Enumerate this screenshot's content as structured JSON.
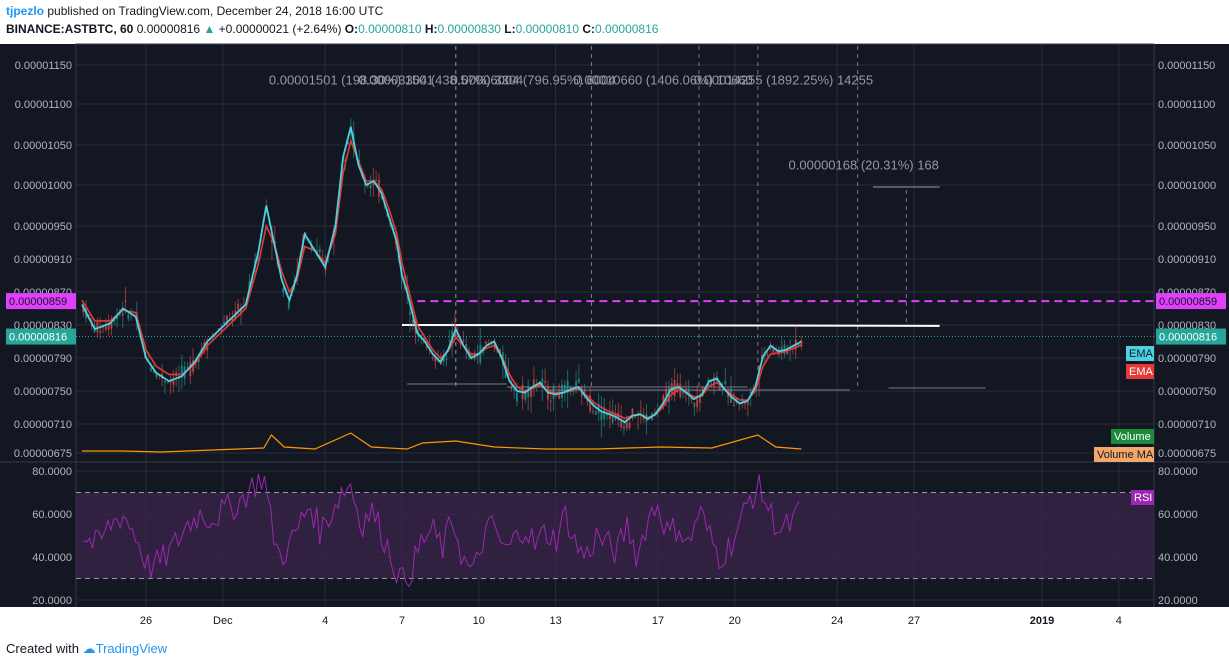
{
  "header": {
    "user": "tjpezlo",
    "published": "published on TradingView.com, December 24, 2018 16:00 UTC",
    "symbol": "BINANCE:ASTBTC, 60",
    "last": "0.00000816",
    "change": "+0.00000021 (+2.64%)",
    "o_label": "O:",
    "o": "0.00000810",
    "h_label": "H:",
    "h": "0.00000830",
    "l_label": "L:",
    "l": "0.00000810",
    "c_label": "C:",
    "c": "0.00000816"
  },
  "footer": {
    "created": "Created with",
    "brand": "TradingView"
  },
  "colors": {
    "background": "#131722",
    "grid": "#2a2e39",
    "text": "#b2b5be",
    "ema_fast": "#4dd0e1",
    "ema_slow": "#e53935",
    "rsi": "#9c27b0",
    "rsi_band": "#3a2448",
    "volume_ma": "#ff9800",
    "level": "#e040fb",
    "last_price": "#26a69a",
    "trendline": "#ffffff",
    "up": "#26a69a",
    "down": "#ef5350"
  },
  "chart_data": {
    "type": "line",
    "price_axis_ticks": [
      "0.00001150",
      "0.00001100",
      "0.00001050",
      "0.00001000",
      "0.00000950",
      "0.00000910",
      "0.00000870",
      "0.00000830",
      "0.00000790",
      "0.00000750",
      "0.00000710",
      "0.00000675"
    ],
    "rsi_axis_ticks": [
      "80.0000",
      "60.0000",
      "40.0000",
      "20.0000"
    ],
    "x_ticks": [
      "26",
      "Dec",
      "4",
      "7",
      "10",
      "13",
      "17",
      "20",
      "24",
      "27",
      "2019",
      "4"
    ],
    "x_tick_times": [
      2.5,
      5.5,
      9.5,
      12.5,
      15.5,
      18.5,
      22.5,
      25.5,
      29.5,
      32.5,
      37.5,
      40.5
    ],
    "price_scale": {
      "values": [
        1.15e-05,
        1.1e-05,
        1.05e-05,
        1e-05,
        9.5e-06,
        9.1e-06,
        8.7e-06,
        8.3e-06,
        7.9e-06,
        7.5e-06,
        7.1e-06,
        6.75e-06
      ]
    },
    "rsi_range": [
      20,
      80
    ],
    "rsi_levels": [
      30,
      70
    ],
    "ema_fast": [
      [
        -3.1,
        8.55
      ],
      [
        -2.6,
        8.25
      ],
      [
        -2.0,
        8.32
      ],
      [
        -1.5,
        8.5
      ],
      [
        -1.0,
        8.4
      ],
      [
        -0.6,
        7.9
      ],
      [
        -0.2,
        7.72
      ],
      [
        0.3,
        7.62
      ],
      [
        0.8,
        7.68
      ],
      [
        1.3,
        7.85
      ],
      [
        1.8,
        8.1
      ],
      [
        2.3,
        8.25
      ],
      [
        2.8,
        8.4
      ],
      [
        3.3,
        8.55
      ],
      [
        3.8,
        9.2
      ],
      [
        4.1,
        9.75
      ],
      [
        4.4,
        9.3
      ],
      [
        4.7,
        8.85
      ],
      [
        5.0,
        8.6
      ],
      [
        5.3,
        8.9
      ],
      [
        5.6,
        9.4
      ],
      [
        6.0,
        9.2
      ],
      [
        6.4,
        9.0
      ],
      [
        6.8,
        9.5
      ],
      [
        7.1,
        10.35
      ],
      [
        7.4,
        10.72
      ],
      [
        7.7,
        10.25
      ],
      [
        8.0,
        10.0
      ],
      [
        8.3,
        10.05
      ],
      [
        8.6,
        9.9
      ],
      [
        8.9,
        9.6
      ],
      [
        9.2,
        9.3
      ],
      [
        9.4,
        8.9
      ],
      [
        9.6,
        8.7
      ],
      [
        9.8,
        8.45
      ],
      [
        10.0,
        8.2
      ],
      [
        10.3,
        8.1
      ],
      [
        10.6,
        7.95
      ],
      [
        10.9,
        7.85
      ],
      [
        11.2,
        8.0
      ],
      [
        11.5,
        8.25
      ],
      [
        11.8,
        8.05
      ],
      [
        12.1,
        7.9
      ],
      [
        12.4,
        7.95
      ],
      [
        12.7,
        8.05
      ],
      [
        13.0,
        8.1
      ],
      [
        13.3,
        7.9
      ],
      [
        13.6,
        7.62
      ],
      [
        13.9,
        7.5
      ],
      [
        14.2,
        7.48
      ],
      [
        14.5,
        7.55
      ],
      [
        14.8,
        7.6
      ],
      [
        15.1,
        7.48
      ],
      [
        15.4,
        7.46
      ],
      [
        15.7,
        7.48
      ],
      [
        16.0,
        7.52
      ],
      [
        16.3,
        7.55
      ],
      [
        16.6,
        7.42
      ],
      [
        16.9,
        7.32
      ],
      [
        17.2,
        7.25
      ],
      [
        17.5,
        7.22
      ],
      [
        17.8,
        7.18
      ],
      [
        18.1,
        7.12
      ],
      [
        18.4,
        7.2
      ],
      [
        18.7,
        7.22
      ],
      [
        19.0,
        7.16
      ],
      [
        19.3,
        7.22
      ],
      [
        19.6,
        7.35
      ],
      [
        19.9,
        7.52
      ],
      [
        20.2,
        7.55
      ],
      [
        20.5,
        7.48
      ],
      [
        20.8,
        7.4
      ],
      [
        21.1,
        7.45
      ],
      [
        21.4,
        7.62
      ],
      [
        21.7,
        7.65
      ],
      [
        22.0,
        7.52
      ],
      [
        22.3,
        7.42
      ],
      [
        22.6,
        7.35
      ],
      [
        22.9,
        7.38
      ],
      [
        23.2,
        7.55
      ],
      [
        23.5,
        7.92
      ],
      [
        23.8,
        8.05
      ],
      [
        24.1,
        7.98
      ],
      [
        24.4,
        8.0
      ],
      [
        24.7,
        8.05
      ],
      [
        25.0,
        8.1
      ]
    ],
    "ema_slow": [
      [
        -3.1,
        8.6
      ],
      [
        -2.6,
        8.35
      ],
      [
        -2.0,
        8.35
      ],
      [
        -1.5,
        8.48
      ],
      [
        -1.0,
        8.45
      ],
      [
        -0.6,
        8.0
      ],
      [
        -0.2,
        7.8
      ],
      [
        0.3,
        7.7
      ],
      [
        0.8,
        7.7
      ],
      [
        1.3,
        7.82
      ],
      [
        1.8,
        8.05
      ],
      [
        2.3,
        8.2
      ],
      [
        2.8,
        8.35
      ],
      [
        3.3,
        8.5
      ],
      [
        3.8,
        9.05
      ],
      [
        4.1,
        9.5
      ],
      [
        4.4,
        9.3
      ],
      [
        4.7,
        8.95
      ],
      [
        5.0,
        8.7
      ],
      [
        5.3,
        8.85
      ],
      [
        5.6,
        9.25
      ],
      [
        6.0,
        9.2
      ],
      [
        6.4,
        9.05
      ],
      [
        6.8,
        9.4
      ],
      [
        7.1,
        10.15
      ],
      [
        7.4,
        10.55
      ],
      [
        7.7,
        10.3
      ],
      [
        8.0,
        10.05
      ],
      [
        8.3,
        10.05
      ],
      [
        8.6,
        9.95
      ],
      [
        8.9,
        9.7
      ],
      [
        9.2,
        9.4
      ],
      [
        9.4,
        9.05
      ],
      [
        9.6,
        8.8
      ],
      [
        9.8,
        8.55
      ],
      [
        10.0,
        8.3
      ],
      [
        10.3,
        8.15
      ],
      [
        10.6,
        8.0
      ],
      [
        10.9,
        7.9
      ],
      [
        11.2,
        7.98
      ],
      [
        11.5,
        8.15
      ],
      [
        11.8,
        8.05
      ],
      [
        12.1,
        7.95
      ],
      [
        12.4,
        7.95
      ],
      [
        12.7,
        8.02
      ],
      [
        13.0,
        8.05
      ],
      [
        13.3,
        7.92
      ],
      [
        13.6,
        7.7
      ],
      [
        13.9,
        7.55
      ],
      [
        14.2,
        7.5
      ],
      [
        14.5,
        7.53
      ],
      [
        14.8,
        7.57
      ],
      [
        15.1,
        7.5
      ],
      [
        15.4,
        7.48
      ],
      [
        15.7,
        7.48
      ],
      [
        16.0,
        7.5
      ],
      [
        16.3,
        7.53
      ],
      [
        16.6,
        7.45
      ],
      [
        16.9,
        7.36
      ],
      [
        17.2,
        7.3
      ],
      [
        17.5,
        7.25
      ],
      [
        17.8,
        7.21
      ],
      [
        18.1,
        7.17
      ],
      [
        18.4,
        7.2
      ],
      [
        18.7,
        7.21
      ],
      [
        19.0,
        7.18
      ],
      [
        19.3,
        7.21
      ],
      [
        19.6,
        7.31
      ],
      [
        19.9,
        7.45
      ],
      [
        20.2,
        7.52
      ],
      [
        20.5,
        7.49
      ],
      [
        20.8,
        7.43
      ],
      [
        21.1,
        7.44
      ],
      [
        21.4,
        7.56
      ],
      [
        21.7,
        7.6
      ],
      [
        22.0,
        7.53
      ],
      [
        22.3,
        7.45
      ],
      [
        22.6,
        7.39
      ],
      [
        22.9,
        7.39
      ],
      [
        23.2,
        7.5
      ],
      [
        23.5,
        7.8
      ],
      [
        23.8,
        7.95
      ],
      [
        24.1,
        7.96
      ],
      [
        24.4,
        7.98
      ],
      [
        24.7,
        8.02
      ],
      [
        25.0,
        8.06
      ]
    ],
    "rsi": [
      [
        -3.1,
        50
      ],
      [
        -2.5,
        45
      ],
      [
        -2.0,
        55
      ],
      [
        -1.5,
        60
      ],
      [
        -1.0,
        50
      ],
      [
        -0.5,
        35
      ],
      [
        0.0,
        38
      ],
      [
        0.5,
        45
      ],
      [
        1.0,
        55
      ],
      [
        1.5,
        60
      ],
      [
        2.0,
        58
      ],
      [
        2.5,
        62
      ],
      [
        3.0,
        65
      ],
      [
        3.5,
        72
      ],
      [
        4.0,
        78
      ],
      [
        4.3,
        55
      ],
      [
        4.6,
        40
      ],
      [
        5.0,
        45
      ],
      [
        5.4,
        55
      ],
      [
        5.8,
        65
      ],
      [
        6.2,
        52
      ],
      [
        6.6,
        60
      ],
      [
        7.0,
        70
      ],
      [
        7.4,
        74
      ],
      [
        7.8,
        55
      ],
      [
        8.2,
        62
      ],
      [
        8.6,
        52
      ],
      [
        9.0,
        40
      ],
      [
        9.4,
        28
      ],
      [
        9.8,
        35
      ],
      [
        10.2,
        48
      ],
      [
        10.6,
        52
      ],
      [
        11.0,
        44
      ],
      [
        11.4,
        58
      ],
      [
        11.8,
        38
      ],
      [
        12.2,
        32
      ],
      [
        12.6,
        50
      ],
      [
        13.0,
        55
      ],
      [
        13.4,
        42
      ],
      [
        13.8,
        48
      ],
      [
        14.2,
        55
      ],
      [
        14.6,
        45
      ],
      [
        15.0,
        52
      ],
      [
        15.4,
        48
      ],
      [
        15.8,
        60
      ],
      [
        16.2,
        45
      ],
      [
        16.6,
        40
      ],
      [
        17.0,
        50
      ],
      [
        17.4,
        46
      ],
      [
        17.8,
        42
      ],
      [
        18.2,
        55
      ],
      [
        18.6,
        40
      ],
      [
        19.0,
        58
      ],
      [
        19.4,
        65
      ],
      [
        19.8,
        50
      ],
      [
        20.2,
        55
      ],
      [
        20.6,
        45
      ],
      [
        21.0,
        62
      ],
      [
        21.4,
        50
      ],
      [
        21.8,
        40
      ],
      [
        22.2,
        45
      ],
      [
        22.6,
        55
      ],
      [
        23.0,
        68
      ],
      [
        23.4,
        72
      ],
      [
        23.8,
        60
      ],
      [
        24.2,
        52
      ],
      [
        24.6,
        55
      ],
      [
        25.0,
        62
      ]
    ],
    "volume_ma": [
      [
        -3.1,
        0.2
      ],
      [
        -1.5,
        0.2
      ],
      [
        0.0,
        0.15
      ],
      [
        2.0,
        0.25
      ],
      [
        4.0,
        0.35
      ],
      [
        4.3,
        1.0
      ],
      [
        4.8,
        0.4
      ],
      [
        6.0,
        0.3
      ],
      [
        7.4,
        1.1
      ],
      [
        8.2,
        0.4
      ],
      [
        9.6,
        0.3
      ],
      [
        10.2,
        0.6
      ],
      [
        11.5,
        0.7
      ],
      [
        13.0,
        0.4
      ],
      [
        15.0,
        0.3
      ],
      [
        17.0,
        0.3
      ],
      [
        19.5,
        0.4
      ],
      [
        21.5,
        0.35
      ],
      [
        23.3,
        1.0
      ],
      [
        24.0,
        0.4
      ],
      [
        25.0,
        0.3
      ]
    ],
    "levels": {
      "resistance": "0.00000859",
      "last": "0.00000816"
    },
    "trendline": [
      [
        3.5,
        8.3
      ],
      [
        27.0,
        8.29
      ]
    ],
    "annotations": [
      {
        "text": "0.00001501 (198.30%) 1501",
        "t": 4.2,
        "price": 11.33
      },
      {
        "text": "0.00003304 (438.57%) 3304",
        "t": 7.7,
        "price": 11.33
      },
      {
        "text": "0.00006004 (796.95%) 6004",
        "t": 11.3,
        "price": 11.33
      },
      {
        "text": "0.00010660 (1406.06%) 10660",
        "t": 16.1,
        "price": 11.33
      },
      {
        "text": "0.00014255 (1892.25%) 14255",
        "t": 20.8,
        "price": 11.33
      },
      {
        "text": "0.00000168 (20.31%) 168",
        "t": 24.5,
        "price": 10.27
      }
    ],
    "labels": {
      "ema1": "EMA",
      "ema2": "EMA",
      "volume": "Volume",
      "volume_ma": "Volume MA",
      "rsi": "RSI",
      "level_tag": "0.00000859",
      "last_tag": "0.00000816"
    }
  }
}
